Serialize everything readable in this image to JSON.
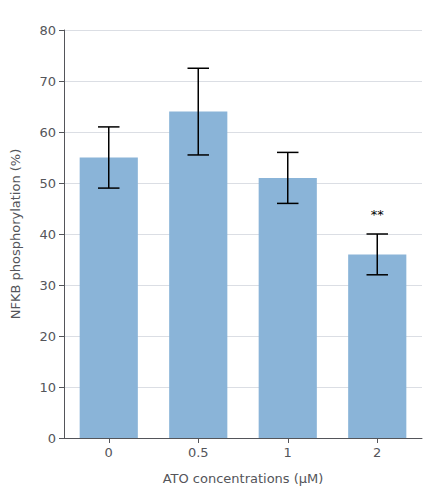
{
  "chart_data": {
    "type": "bar",
    "categories": [
      "0",
      "0.5",
      "1",
      "2"
    ],
    "values": [
      55.0,
      64.0,
      51.0,
      36.0
    ],
    "errors": [
      6.0,
      8.5,
      5.0,
      4.0
    ],
    "color": "#8ab4d8",
    "xlabel": "ATO concentrations (μM)",
    "ylabel": "NFKB phosphorylation (%)",
    "ylim": [
      0,
      80
    ],
    "yticks": [
      0,
      10,
      20,
      30,
      40,
      50,
      60,
      70,
      80
    ],
    "grid": true,
    "annotations": [
      {
        "text": "**",
        "x": "2",
        "y": 41.5
      }
    ]
  }
}
